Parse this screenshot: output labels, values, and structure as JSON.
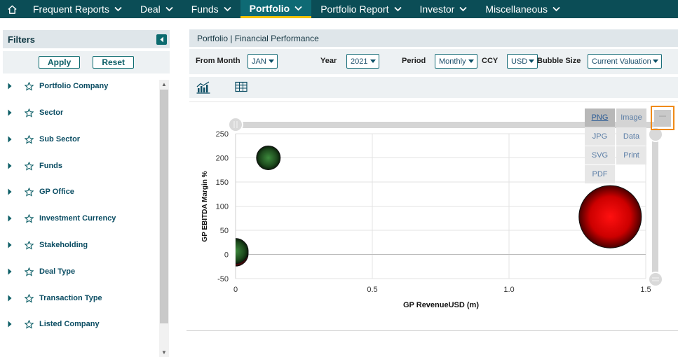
{
  "nav": {
    "home_icon": "home-icon",
    "items": [
      {
        "label": "Frequent Reports",
        "active": false
      },
      {
        "label": "Deal",
        "active": false
      },
      {
        "label": "Funds",
        "active": false
      },
      {
        "label": "Portfolio",
        "active": true
      },
      {
        "label": "Portfolio Report",
        "active": false
      },
      {
        "label": "Investor",
        "active": false
      },
      {
        "label": "Miscellaneous",
        "active": false
      }
    ]
  },
  "sidebar": {
    "title": "Filters",
    "apply_label": "Apply",
    "reset_label": "Reset",
    "items": [
      {
        "label": "Portfolio Company"
      },
      {
        "label": "Sector"
      },
      {
        "label": "Sub Sector"
      },
      {
        "label": "Funds"
      },
      {
        "label": "GP Office"
      },
      {
        "label": "Investment Currency"
      },
      {
        "label": "Stakeholding"
      },
      {
        "label": "Deal Type"
      },
      {
        "label": "Transaction Type"
      },
      {
        "label": "Listed Company"
      }
    ]
  },
  "main": {
    "title": "Portfolio | Financial Performance",
    "params": {
      "from_month_label": "From Month",
      "from_month_value": "JAN",
      "year_label": "Year",
      "year_value": "2021",
      "period_label": "Period",
      "period_value": "Monthly",
      "ccy_label": "CCY",
      "ccy_value": "USD",
      "bubble_size_label": "Bubble Size",
      "bubble_size_value": "Current Valuation"
    },
    "view_icons": [
      "chart-view-icon",
      "table-view-icon"
    ]
  },
  "export_menu": {
    "items": [
      "PNG",
      "Image",
      "JPG",
      "Data",
      "SVG",
      "Print",
      "PDF"
    ],
    "toggle_icon": "menu-icon"
  },
  "chart_data": {
    "type": "scatter",
    "subtype": "bubble",
    "xlabel": "GP RevenueUSD (m)",
    "ylabel": "GP EBITDA Margin %",
    "xlim": [
      0,
      1.5
    ],
    "ylim": [
      -50,
      250
    ],
    "xticks": [
      "0",
      "0.5",
      "1.0",
      "1.5"
    ],
    "yticks": [
      "250",
      "200",
      "150",
      "100",
      "50",
      "0",
      "-50"
    ],
    "grid": true,
    "points": [
      {
        "x": 0.12,
        "y": 200,
        "size": 1.6,
        "color": "#2d6a2d"
      },
      {
        "x": 0.0,
        "y": 2,
        "size": 1.7,
        "color": "#8b1a1a"
      },
      {
        "x": 0.0,
        "y": 7,
        "size": 1.7,
        "color": "#2d6a2d"
      },
      {
        "x": 1.37,
        "y": 78,
        "size": 4.2,
        "color": "#dd1010"
      }
    ]
  }
}
